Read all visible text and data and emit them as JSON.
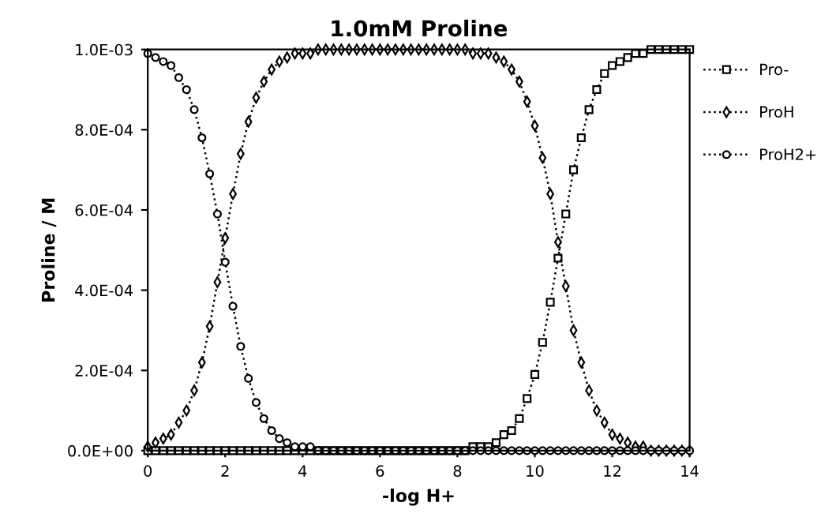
{
  "chart_data": {
    "type": "line",
    "title": "1.0mM Proline",
    "xlabel": "-log H+",
    "ylabel": "Proline / M",
    "x": [
      0,
      0.2,
      0.4,
      0.6,
      0.8,
      1,
      1.2,
      1.4,
      1.6,
      1.8,
      2,
      2.2,
      2.4,
      2.6,
      2.8,
      3,
      3.2,
      3.4,
      3.6,
      3.8,
      4,
      4.2,
      4.4,
      4.6,
      4.8,
      5,
      5.2,
      5.4,
      5.6,
      5.8,
      6,
      6.2,
      6.4,
      6.6,
      6.8,
      7,
      7.2,
      7.4,
      7.6,
      7.8,
      8,
      8.2,
      8.4,
      8.6,
      8.8,
      9,
      9.2,
      9.4,
      9.6,
      9.8,
      10,
      10.2,
      10.4,
      10.6,
      10.8,
      11,
      11.2,
      11.4,
      11.6,
      11.8,
      12,
      12.2,
      12.4,
      12.6,
      12.8,
      13,
      13.2,
      13.4,
      13.6,
      13.8,
      14
    ],
    "series": [
      {
        "name": "Pro-",
        "color": "#000000",
        "marker": "square",
        "values": [
          0,
          0,
          0,
          0,
          0,
          0,
          0,
          0,
          0,
          0,
          0,
          0,
          0,
          0,
          0,
          0,
          0,
          0,
          0,
          0,
          0,
          0,
          0,
          0,
          0,
          0,
          0,
          0,
          0,
          0,
          0,
          0,
          0,
          0,
          0,
          0,
          0,
          0,
          0,
          0,
          0,
          0,
          1e-05,
          1e-05,
          1e-05,
          2e-05,
          4e-05,
          5e-05,
          8e-05,
          0.00013,
          0.00019,
          0.00027,
          0.00037,
          0.00048,
          0.00059,
          0.0007,
          0.00078,
          0.00085,
          0.0009,
          0.00094,
          0.00096,
          0.00097,
          0.00098,
          0.00099,
          0.00099,
          0.001,
          0.001,
          0.001,
          0.001,
          0.001,
          0.001
        ]
      },
      {
        "name": "ProH",
        "color": "#000000",
        "marker": "diamond",
        "values": [
          1e-05,
          2e-05,
          3e-05,
          4e-05,
          7e-05,
          0.0001,
          0.00015,
          0.00022,
          0.00031,
          0.00042,
          0.00053,
          0.00064,
          0.00074,
          0.00082,
          0.00088,
          0.00092,
          0.00095,
          0.00097,
          0.00098,
          0.00099,
          0.00099,
          0.00099,
          0.001,
          0.001,
          0.001,
          0.001,
          0.001,
          0.001,
          0.001,
          0.001,
          0.001,
          0.001,
          0.001,
          0.001,
          0.001,
          0.001,
          0.001,
          0.001,
          0.001,
          0.001,
          0.001,
          0.001,
          0.00099,
          0.00099,
          0.00099,
          0.00098,
          0.00097,
          0.00095,
          0.00092,
          0.00087,
          0.00081,
          0.00073,
          0.00064,
          0.00052,
          0.00041,
          0.0003,
          0.00022,
          0.00015,
          0.0001,
          7e-05,
          4e-05,
          3e-05,
          2e-05,
          1e-05,
          1e-05,
          0,
          0,
          0,
          0,
          0,
          0
        ]
      },
      {
        "name": "ProH2+",
        "color": "#000000",
        "marker": "circle",
        "values": [
          0.00099,
          0.00098,
          0.00097,
          0.00096,
          0.00093,
          0.0009,
          0.00085,
          0.00078,
          0.00069,
          0.00059,
          0.00047,
          0.00036,
          0.00026,
          0.00018,
          0.00012,
          8e-05,
          5e-05,
          3e-05,
          2e-05,
          1e-05,
          1e-05,
          1e-05,
          0,
          0,
          0,
          0,
          0,
          0,
          0,
          0,
          0,
          0,
          0,
          0,
          0,
          0,
          0,
          0,
          0,
          0,
          0,
          0,
          0,
          0,
          0,
          0,
          0,
          0,
          0,
          0,
          0,
          0,
          0,
          0,
          0,
          0,
          0,
          0,
          0,
          0,
          0,
          0,
          0,
          0,
          0,
          0,
          0,
          0,
          0,
          0,
          0
        ]
      }
    ],
    "xlim": [
      0,
      14
    ],
    "xticks": [
      0,
      2,
      4,
      6,
      8,
      10,
      12,
      14
    ],
    "ylim": [
      0,
      0.001
    ],
    "yticks": [
      {
        "value": 0,
        "label": "0.0E+00"
      },
      {
        "value": 0.0002,
        "label": "2.0E-04"
      },
      {
        "value": 0.0004,
        "label": "4.0E-04"
      },
      {
        "value": 0.0006,
        "label": "6.0E-04"
      },
      {
        "value": 0.0008,
        "label": "8.0E-04"
      },
      {
        "value": 0.001,
        "label": "1.0E-03"
      }
    ],
    "line_style": "dotted",
    "grid": false,
    "legend": "right"
  }
}
